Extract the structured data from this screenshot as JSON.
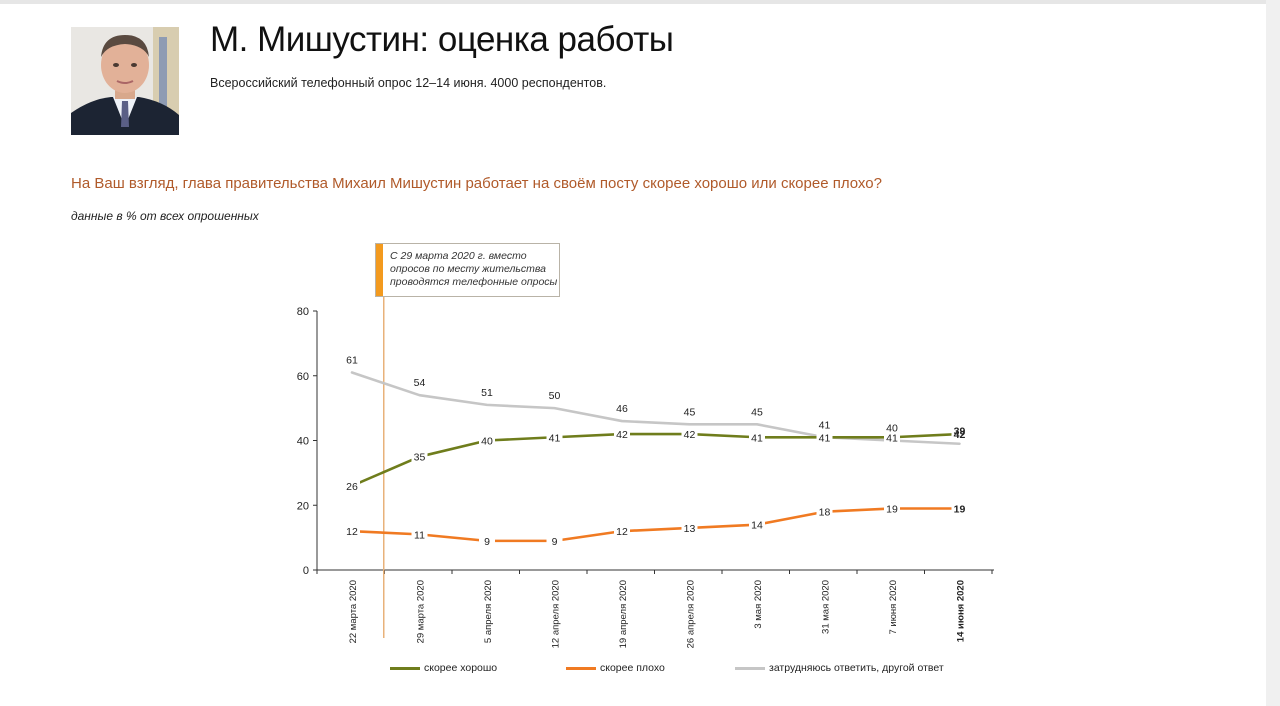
{
  "header": {
    "title": "М. Мишустин: оценка работы",
    "subtitle": "Всероссийский телефонный опрос 12–14 июня. 4000 респондентов."
  },
  "question": "На Ваш взгляд, глава правительства Михаил Мишустин работает на своём посту скорее хорошо или скорее плохо?",
  "unit_note": "данные в % от всех опрошенных",
  "annotation": {
    "lines": [
      "С 29 марта 2020 г. вместо",
      "опросов по месту жительства",
      "проводятся телефонные опросы"
    ],
    "accent_color": "#f39a1e",
    "line_color": "#e8b27a"
  },
  "chart_data": {
    "type": "line",
    "categories": [
      "22 марта 2020",
      "29 марта 2020",
      "5 апреля 2020",
      "12 апреля 2020",
      "19 апреля 2020",
      "26 апреля 2020",
      "3 мая 2020",
      "31 мая 2020",
      "7 июня 2020",
      "14 июня 2020"
    ],
    "bold_category_index": 9,
    "marker_after_category_index": 0,
    "ylim": [
      0,
      80
    ],
    "yticks": [
      0,
      20,
      40,
      60,
      80
    ],
    "grid": false,
    "legend_position": "bottom",
    "series": [
      {
        "name": "скорее хорошо",
        "color": "#6f7d1c",
        "values": [
          26,
          35,
          40,
          41,
          42,
          42,
          41,
          41,
          41,
          42
        ],
        "label_pos": "center"
      },
      {
        "name": "скорее плохо",
        "color": "#f07a22",
        "values": [
          12,
          11,
          9,
          9,
          12,
          13,
          14,
          18,
          19,
          19
        ],
        "label_pos": "center"
      },
      {
        "name": "затрудняюсь ответить, другой ответ",
        "color": "#c6c6c6",
        "values": [
          61,
          54,
          51,
          50,
          46,
          45,
          45,
          41,
          40,
          39
        ],
        "label_pos": "above"
      }
    ]
  }
}
